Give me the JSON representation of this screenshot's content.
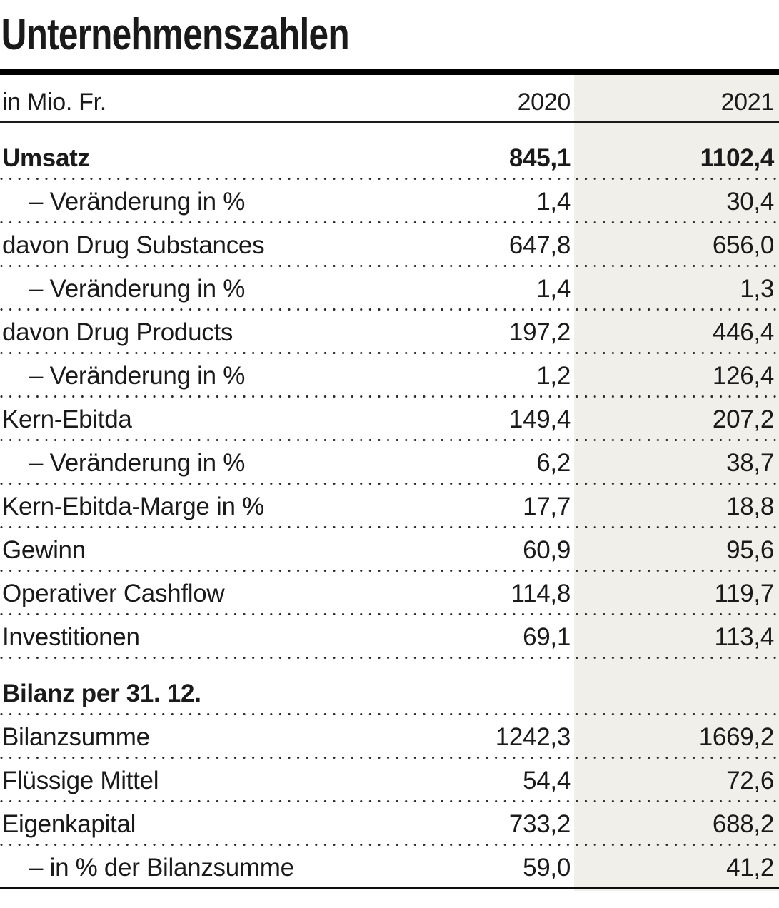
{
  "title": "Unternehmenszahlen",
  "header": {
    "unit_label": "in Mio. Fr.",
    "col_2020": "2020",
    "col_2021": "2021"
  },
  "colors": {
    "highlight_column": "#f0efe9",
    "text": "#1a1a1a",
    "rule": "#000000"
  },
  "chart_data": {
    "type": "table",
    "title": "Unternehmenszahlen",
    "unit": "in Mio. Fr.",
    "columns": [
      "2020",
      "2021"
    ],
    "layout_hints": {
      "highlighted_column": "2021",
      "separators": "dotted",
      "decimal_separator": ","
    },
    "rows": [
      {
        "label": "Umsatz",
        "v2020": "845,1",
        "v2021": "1102,4",
        "bold": true,
        "indent": false,
        "section": false
      },
      {
        "label": "– Veränderung in %",
        "v2020": "1,4",
        "v2021": "30,4",
        "bold": false,
        "indent": true,
        "section": false
      },
      {
        "label": "davon Drug Substances",
        "v2020": "647,8",
        "v2021": "656,0",
        "bold": false,
        "indent": false,
        "section": false
      },
      {
        "label": "– Veränderung in %",
        "v2020": "1,4",
        "v2021": "1,3",
        "bold": false,
        "indent": true,
        "section": false
      },
      {
        "label": "davon Drug Products",
        "v2020": "197,2",
        "v2021": "446,4",
        "bold": false,
        "indent": false,
        "section": false
      },
      {
        "label": "– Veränderung in %",
        "v2020": "1,2",
        "v2021": "126,4",
        "bold": false,
        "indent": true,
        "section": false
      },
      {
        "label": "Kern-Ebitda",
        "v2020": "149,4",
        "v2021": "207,2",
        "bold": false,
        "indent": false,
        "section": false
      },
      {
        "label": "– Veränderung in %",
        "v2020": "6,2",
        "v2021": "38,7",
        "bold": false,
        "indent": true,
        "section": false
      },
      {
        "label": "Kern-Ebitda-Marge in %",
        "v2020": "17,7",
        "v2021": "18,8",
        "bold": false,
        "indent": false,
        "section": false
      },
      {
        "label": "Gewinn",
        "v2020": "60,9",
        "v2021": "95,6",
        "bold": false,
        "indent": false,
        "section": false
      },
      {
        "label": "Operativer Cashflow",
        "v2020": "114,8",
        "v2021": "119,7",
        "bold": false,
        "indent": false,
        "section": false
      },
      {
        "label": "Investitionen",
        "v2020": "69,1",
        "v2021": "113,4",
        "bold": false,
        "indent": false,
        "section": false
      },
      {
        "label": "Bilanz per 31. 12.",
        "v2020": "",
        "v2021": "",
        "bold": true,
        "indent": false,
        "section": true
      },
      {
        "label": "Bilanzsumme",
        "v2020": "1242,3",
        "v2021": "1669,2",
        "bold": false,
        "indent": false,
        "section": false
      },
      {
        "label": "Flüssige Mittel",
        "v2020": "54,4",
        "v2021": "72,6",
        "bold": false,
        "indent": false,
        "section": false
      },
      {
        "label": "Eigenkapital",
        "v2020": "733,2",
        "v2021": "688,2",
        "bold": false,
        "indent": false,
        "section": false
      },
      {
        "label": "– in % der Bilanzsumme",
        "v2020": "59,0",
        "v2021": "41,2",
        "bold": false,
        "indent": true,
        "section": false
      }
    ]
  }
}
